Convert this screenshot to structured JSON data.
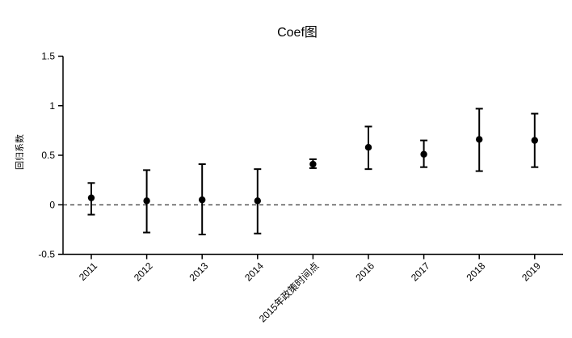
{
  "chart_data": {
    "type": "scatter",
    "subtype": "coefficient-plot-with-error-bars",
    "title": "Coef图",
    "xlabel": "",
    "ylabel": "回归系数",
    "categories": [
      "2011",
      "2012",
      "2013",
      "2014",
      "2015年政策时间点",
      "2016",
      "2017",
      "2018",
      "2019"
    ],
    "series": [
      {
        "name": "回归系数",
        "values": [
          0.07,
          0.04,
          0.05,
          0.04,
          0.41,
          0.58,
          0.51,
          0.66,
          0.65
        ],
        "ci_low": [
          -0.1,
          -0.28,
          -0.3,
          -0.29,
          0.37,
          0.36,
          0.38,
          0.34,
          0.38
        ],
        "ci_high": [
          0.22,
          0.35,
          0.41,
          0.36,
          0.46,
          0.79,
          0.65,
          0.97,
          0.92
        ]
      }
    ],
    "ylim": [
      -0.5,
      1.5
    ],
    "yticks": [
      1.5,
      1,
      0.5,
      0,
      -0.5
    ],
    "ytick_labels": [
      "1.5",
      "1",
      "0.5",
      "0",
      "-0.5"
    ],
    "reference_line": {
      "y": 0,
      "style": "dashed"
    },
    "grid": false,
    "legend": "none",
    "x_label_rotation_deg": 45,
    "marker_color": "#000000",
    "axis_color": "#000000",
    "background": "#ffffff"
  }
}
